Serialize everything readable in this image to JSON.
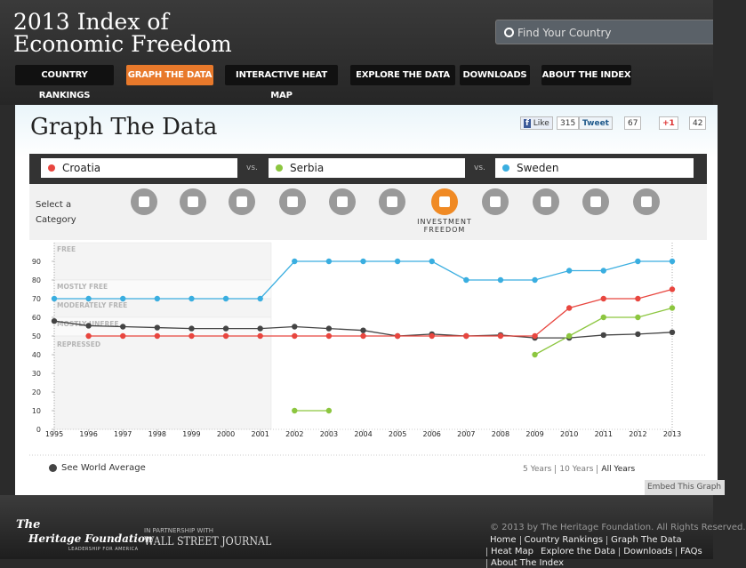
{
  "header": {
    "title_line1": "2013 Index of",
    "title_line2": "Economic Freedom",
    "search_placeholder": "Find Your Country",
    "nav": [
      "COUNTRY RANKINGS",
      "GRAPH THE DATA",
      "INTERACTIVE HEAT MAP",
      "EXPLORE THE DATA",
      "DOWNLOADS",
      "ABOUT THE INDEX"
    ],
    "active_nav": 1
  },
  "panel": {
    "title": "Graph The Data",
    "social": {
      "like": "Like",
      "like_count": "315",
      "tweet": "Tweet",
      "tweet_count": "67",
      "plus": "+1",
      "plus_count": "42"
    },
    "vs": "vs.",
    "select_label_1": "Select a",
    "select_label_2": "Category",
    "selected_category": "INVESTMENT",
    "selected_category_2": "FREEDOM",
    "ranges": [
      "5 Years",
      "10 Years",
      "All Years"
    ],
    "active_range": 2,
    "embed": "Embed This Graph"
  },
  "chart_data": {
    "type": "line",
    "x": [
      1995,
      1996,
      1997,
      1998,
      1999,
      2000,
      2001,
      2002,
      2003,
      2004,
      2005,
      2006,
      2007,
      2008,
      2009,
      2010,
      2011,
      2012,
      2013
    ],
    "xlim": [
      1995,
      2013
    ],
    "xticks": [
      1995,
      1996,
      1997,
      1998,
      1999,
      2000,
      2001,
      2002,
      2003,
      2004,
      2005,
      2006,
      2007,
      2008,
      2009,
      2010,
      2011,
      2012,
      2013
    ],
    "ylim": [
      0,
      100
    ],
    "yticks": [
      0,
      10,
      20,
      30,
      40,
      50,
      60,
      70,
      80,
      90
    ],
    "zones": [
      {
        "label": "FREE",
        "from": 80,
        "to": 100
      },
      {
        "label": "MOSTLY FREE",
        "from": 70,
        "to": 80
      },
      {
        "label": "MODERATELY FREE",
        "from": 60,
        "to": 70
      },
      {
        "label": "MOSTLY UNFREE",
        "from": 50,
        "to": 60
      },
      {
        "label": "REPRESSED",
        "from": 0,
        "to": 50
      }
    ],
    "series": [
      {
        "name": "Croatia",
        "color": "#e8463f",
        "values": [
          null,
          50,
          50,
          50,
          50,
          50,
          50,
          50,
          50,
          50,
          50,
          50,
          50,
          50,
          50,
          65,
          70,
          70,
          75
        ]
      },
      {
        "name": "Serbia",
        "color": "#8cc63f",
        "values": [
          null,
          null,
          null,
          null,
          null,
          null,
          null,
          10,
          10,
          null,
          null,
          null,
          null,
          null,
          40,
          50,
          60,
          60,
          65
        ]
      },
      {
        "name": "Sweden",
        "color": "#3aaee0",
        "values": [
          70,
          70,
          70,
          70,
          70,
          70,
          70,
          90,
          90,
          90,
          90,
          90,
          80,
          80,
          80,
          85,
          85,
          90,
          90
        ]
      },
      {
        "name": "See World Average",
        "color": "#444444",
        "values": [
          58,
          55.5,
          55,
          54.5,
          54,
          54,
          54,
          55,
          54,
          53,
          50,
          51,
          50,
          50.5,
          49,
          49,
          50.5,
          51,
          52
        ]
      }
    ]
  },
  "footer": {
    "logo_the": "The",
    "logo_name": "Heritage Foundation",
    "logo_tag": "LEADERSHIP FOR AMERICA",
    "partner": "IN PARTNERSHIP WITH",
    "wsj": "WALL STREET JOURNAL",
    "copyright": "© 2013 by The Heritage Foundation. All Rights Reserved.",
    "links": [
      "Home",
      "Country Rankings",
      "Graph The Data",
      "Heat Map",
      "Explore the Data",
      "Downloads",
      "FAQs",
      "About The Index"
    ]
  }
}
